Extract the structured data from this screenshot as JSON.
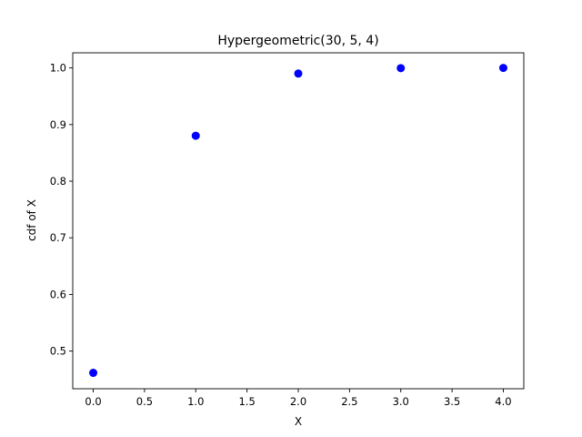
{
  "chart_data": {
    "type": "scatter",
    "title": "Hypergeometric(30, 5, 4)",
    "xlabel": "X",
    "ylabel": "cdf of X",
    "xlim": [
      -0.2,
      4.2
    ],
    "ylim": [
      0.4335,
      1.0267
    ],
    "grid": false,
    "marker_color": "#0000ff",
    "x_ticks": [
      {
        "value": 0.0,
        "label": "0.0"
      },
      {
        "value": 0.5,
        "label": "0.5"
      },
      {
        "value": 1.0,
        "label": "1.0"
      },
      {
        "value": 1.5,
        "label": "1.5"
      },
      {
        "value": 2.0,
        "label": "2.0"
      },
      {
        "value": 2.5,
        "label": "2.5"
      },
      {
        "value": 3.0,
        "label": "3.0"
      },
      {
        "value": 3.5,
        "label": "3.5"
      },
      {
        "value": 4.0,
        "label": "4.0"
      }
    ],
    "y_ticks": [
      {
        "value": 0.5,
        "label": "0.5"
      },
      {
        "value": 0.6,
        "label": "0.6"
      },
      {
        "value": 0.7,
        "label": "0.7"
      },
      {
        "value": 0.8,
        "label": "0.8"
      },
      {
        "value": 0.9,
        "label": "0.9"
      },
      {
        "value": 1.0,
        "label": "1.0"
      }
    ],
    "points": [
      {
        "x": 0,
        "y": 0.4616
      },
      {
        "x": 1,
        "y": 0.8803
      },
      {
        "x": 2,
        "y": 0.9901
      },
      {
        "x": 3,
        "y": 0.9996
      },
      {
        "x": 4,
        "y": 1.0
      }
    ]
  }
}
